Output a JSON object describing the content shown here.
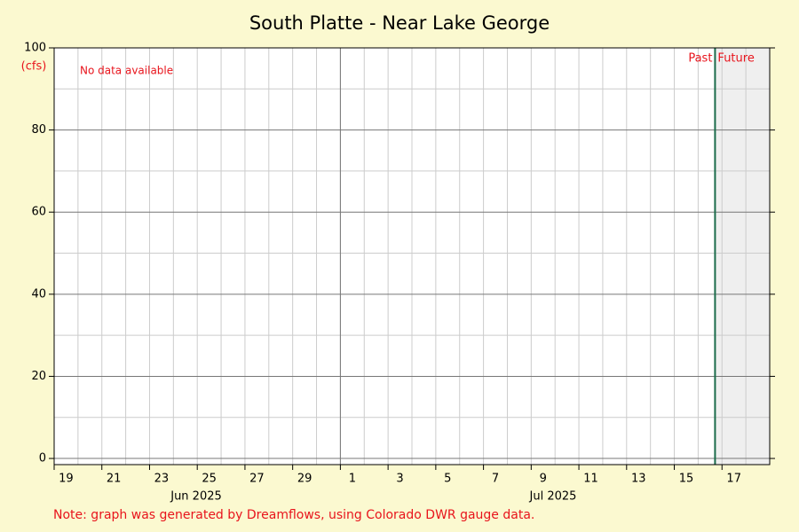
{
  "chart_data": {
    "type": "line",
    "title": "South Platte - Near Lake George",
    "y_unit": "(cfs)",
    "no_data_text": "No data available",
    "past_label": "Past",
    "future_label": "Future",
    "now": "2025-07-16T17:00",
    "note": "Note: graph was generated by Dreamflows, using Colorado DWR gauge data.",
    "series": [],
    "xlim": [
      "2025-06-19",
      "2025-07-19"
    ],
    "xticks": [
      {
        "value": "2025-06-19",
        "label": "19"
      },
      {
        "value": "2025-06-21",
        "label": "21"
      },
      {
        "value": "2025-06-23",
        "label": "23"
      },
      {
        "value": "2025-06-25",
        "label": "25"
      },
      {
        "value": "2025-06-27",
        "label": "27"
      },
      {
        "value": "2025-06-29",
        "label": "29"
      },
      {
        "value": "2025-07-01",
        "label": "1"
      },
      {
        "value": "2025-07-03",
        "label": "3"
      },
      {
        "value": "2025-07-05",
        "label": "5"
      },
      {
        "value": "2025-07-07",
        "label": "7"
      },
      {
        "value": "2025-07-09",
        "label": "9"
      },
      {
        "value": "2025-07-11",
        "label": "11"
      },
      {
        "value": "2025-07-13",
        "label": "13"
      },
      {
        "value": "2025-07-15",
        "label": "15"
      },
      {
        "value": "2025-07-17",
        "label": "17"
      }
    ],
    "xminor_ticks": [
      "2025-06-20",
      "2025-06-22",
      "2025-06-24",
      "2025-06-26",
      "2025-06-28",
      "2025-06-30",
      "2025-07-02",
      "2025-07-04",
      "2025-07-06",
      "2025-07-08",
      "2025-07-10",
      "2025-07-12",
      "2025-07-14",
      "2025-07-16",
      "2025-07-18"
    ],
    "month_starts": [
      "2025-07-01"
    ],
    "month_labels": [
      "Jun 2025",
      "Jul 2025"
    ],
    "ylim": [
      -1.5,
      100
    ],
    "yticks": [
      0,
      20,
      40,
      60,
      80,
      100
    ],
    "yminor_ticks": [
      10,
      30,
      50,
      70,
      90
    ],
    "grid": true,
    "future_color": "#efefef",
    "now_color": "#1a6b4a"
  }
}
